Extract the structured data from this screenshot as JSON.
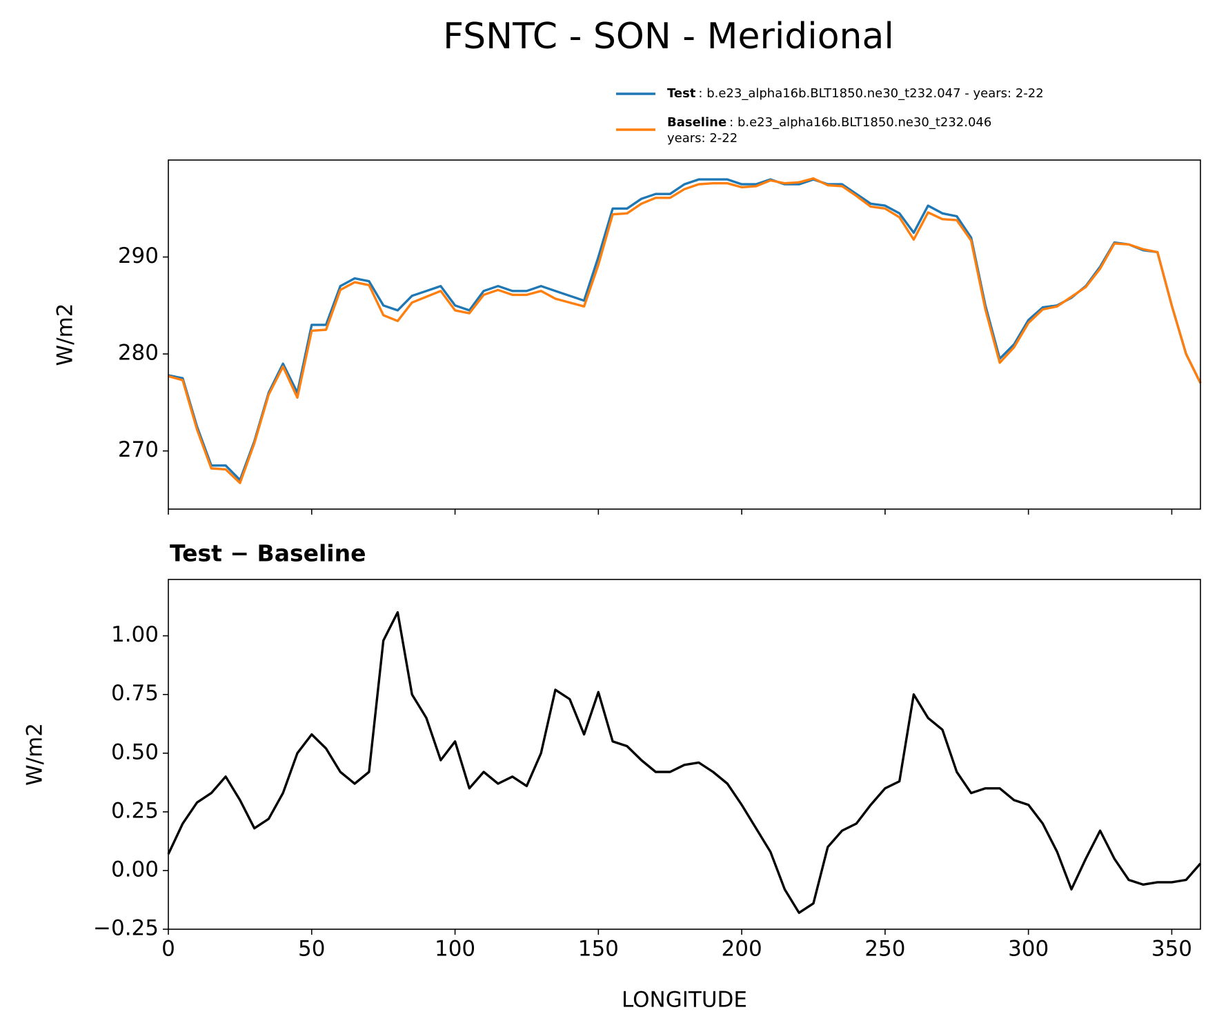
{
  "title": "FSNTC - SON - Meridional",
  "chart_data": [
    {
      "type": "line",
      "ylabel": "W/m2",
      "x": [
        0,
        5,
        10,
        15,
        20,
        25,
        30,
        35,
        40,
        45,
        50,
        55,
        60,
        65,
        70,
        75,
        80,
        85,
        90,
        95,
        100,
        105,
        110,
        115,
        120,
        125,
        130,
        135,
        140,
        145,
        150,
        155,
        160,
        165,
        170,
        175,
        180,
        185,
        190,
        195,
        200,
        205,
        210,
        215,
        220,
        225,
        230,
        235,
        240,
        245,
        250,
        255,
        260,
        265,
        270,
        275,
        280,
        285,
        290,
        295,
        300,
        305,
        310,
        315,
        320,
        325,
        330,
        335,
        340,
        345,
        350,
        355,
        360
      ],
      "series": [
        {
          "name": "Test",
          "description": [
            ": b.e23_alpha16b.BLT1850.ne30_t232.047 - years: 2-22"
          ],
          "color": "#1f77b4",
          "values": [
            277.8,
            277.5,
            272.5,
            268.5,
            268.5,
            267,
            271,
            276,
            279,
            276,
            283,
            283,
            287,
            287.8,
            287.5,
            285,
            284.5,
            286,
            286.5,
            287,
            285,
            284.5,
            286.5,
            287,
            286.5,
            286.5,
            287,
            286.5,
            286,
            285.5,
            290,
            295,
            295,
            296,
            296.5,
            296.5,
            297.5,
            298,
            298,
            298,
            297.5,
            297.5,
            298,
            297.5,
            297.5,
            298,
            297.5,
            297.5,
            296.5,
            295.5,
            295.3,
            294.5,
            292.5,
            295.3,
            294.5,
            294.2,
            292,
            285,
            279.5,
            281,
            283.5,
            284.8,
            285,
            285.8,
            287,
            289,
            291.5,
            291.3,
            290.7,
            290.5,
            285,
            280,
            277
          ]
        },
        {
          "name": "Baseline",
          "description": [
            ": b.e23_alpha16b.BLT1850.ne30_t232.046",
            "years: 2-22"
          ],
          "color": "#ff7f0e",
          "values": [
            277.7,
            277.3,
            272.2,
            268.2,
            268.1,
            266.7,
            270.8,
            275.8,
            278.7,
            275.5,
            282.4,
            282.5,
            286.6,
            287.4,
            287.1,
            284.0,
            283.4,
            285.3,
            285.9,
            286.5,
            284.5,
            284.2,
            286.1,
            286.6,
            286.1,
            286.1,
            286.5,
            285.7,
            285.3,
            284.9,
            289.2,
            294.4,
            294.5,
            295.5,
            296.1,
            296.1,
            297.0,
            297.5,
            297.6,
            297.6,
            297.2,
            297.3,
            297.9,
            297.6,
            297.7,
            298.1,
            297.4,
            297.3,
            296.3,
            295.2,
            295.0,
            294.1,
            291.8,
            294.6,
            293.9,
            293.8,
            291.7,
            284.6,
            279.1,
            280.7,
            283.2,
            284.6,
            284.9,
            285.9,
            286.9,
            288.8,
            291.4,
            291.3,
            290.8,
            290.5,
            285.0,
            280.0,
            277.0
          ]
        }
      ],
      "xlim": [
        0,
        360
      ],
      "xticks": [
        0,
        50,
        100,
        150,
        200,
        250,
        300,
        350
      ],
      "xtick_labels": false,
      "ylim": [
        264,
        300
      ],
      "yticks": [
        270,
        280,
        290
      ]
    },
    {
      "type": "line",
      "title": "Test − Baseline",
      "ylabel": "W/m2",
      "xlabel": "LONGITUDE",
      "x": [
        0,
        5,
        10,
        15,
        20,
        25,
        30,
        35,
        40,
        45,
        50,
        55,
        60,
        65,
        70,
        75,
        80,
        85,
        90,
        95,
        100,
        105,
        110,
        115,
        120,
        125,
        130,
        135,
        140,
        145,
        150,
        155,
        160,
        165,
        170,
        175,
        180,
        185,
        190,
        195,
        200,
        205,
        210,
        215,
        220,
        225,
        230,
        235,
        240,
        245,
        250,
        255,
        260,
        265,
        270,
        275,
        280,
        285,
        290,
        295,
        300,
        305,
        310,
        315,
        320,
        325,
        330,
        335,
        340,
        345,
        350,
        355,
        360
      ],
      "color": "#000000",
      "values": [
        0.07,
        0.2,
        0.29,
        0.33,
        0.4,
        0.3,
        0.18,
        0.22,
        0.33,
        0.5,
        0.58,
        0.52,
        0.42,
        0.37,
        0.42,
        0.98,
        1.1,
        0.75,
        0.65,
        0.47,
        0.55,
        0.35,
        0.42,
        0.37,
        0.4,
        0.36,
        0.5,
        0.77,
        0.73,
        0.58,
        0.76,
        0.55,
        0.53,
        0.47,
        0.42,
        0.42,
        0.45,
        0.46,
        0.42,
        0.37,
        0.28,
        0.18,
        0.08,
        -0.08,
        -0.18,
        -0.14,
        0.1,
        0.17,
        0.2,
        0.28,
        0.35,
        0.38,
        0.75,
        0.65,
        0.6,
        0.42,
        0.33,
        0.35,
        0.35,
        0.3,
        0.28,
        0.2,
        0.08,
        -0.08,
        0.05,
        0.17,
        0.05,
        -0.04,
        -0.06,
        -0.05,
        -0.05,
        -0.04,
        0.03
      ],
      "xlim": [
        0,
        360
      ],
      "xticks": [
        0,
        50,
        100,
        150,
        200,
        250,
        300,
        350
      ],
      "ylim": [
        -0.25,
        1.24
      ],
      "yticks": [
        {
          "value": -0.25,
          "label": "−0.25"
        },
        {
          "value": 0,
          "label": "0.00"
        },
        {
          "value": 0.25,
          "label": "0.25"
        },
        {
          "value": 0.5,
          "label": "0.50"
        },
        {
          "value": 0.75,
          "label": "0.75"
        },
        {
          "value": 1,
          "label": "1.00"
        }
      ]
    }
  ]
}
